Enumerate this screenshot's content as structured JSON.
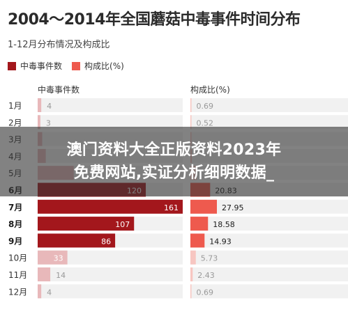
{
  "header": {
    "title": "2004～2014年全国蘑菇中毒事件时间分布",
    "subtitle": "1-12月分布情况及构成比"
  },
  "legend": [
    {
      "label": "中毒事件数",
      "color": "#a3171c"
    },
    {
      "label": "构成比(%)",
      "color": "#ee5a4e"
    }
  ],
  "columns": {
    "left_header": "中毒事件数",
    "right_header": "构成比(%)"
  },
  "banner": {
    "line1": "澳门资料大全正版资料2023年",
    "line2": "免费网站,实证分析细明数据_"
  },
  "colors": {
    "strong_dark": "#a3171c",
    "strong_light": "#ee5a4e",
    "faint_dark": "#e8b8ba",
    "faint_light": "#f7c6c1",
    "row_bg": "#f1f1f1"
  },
  "chart_data": {
    "type": "bar",
    "categories": [
      "1月",
      "2月",
      "3月",
      "4月",
      "5月",
      "6月",
      "7月",
      "8月",
      "9月",
      "10月",
      "11月",
      "12月"
    ],
    "series": [
      {
        "name": "中毒事件数",
        "values": [
          4,
          3,
          5,
          9,
          40,
          120,
          161,
          107,
          86,
          33,
          14,
          4
        ],
        "labels": [
          "4",
          "3",
          "",
          "",
          "",
          "120",
          "161",
          "107",
          "86",
          "33",
          "14",
          "4"
        ]
      },
      {
        "name": "构成比(%)",
        "values": [
          0.69,
          0.52,
          0.87,
          1.55,
          6.94,
          20.83,
          27.95,
          18.58,
          14.93,
          5.73,
          2.43,
          0.69
        ],
        "labels": [
          "0.69",
          "0.52",
          "",
          "",
          "",
          "20.83",
          "27.95",
          "18.58",
          "14.93",
          "5.73",
          "2.43",
          "0.69"
        ]
      }
    ],
    "highlighted": [
      "6月",
      "7月",
      "8月",
      "9月"
    ],
    "xlim_left": [
      0,
      161
    ],
    "xlim_right": [
      0,
      27.95
    ]
  }
}
